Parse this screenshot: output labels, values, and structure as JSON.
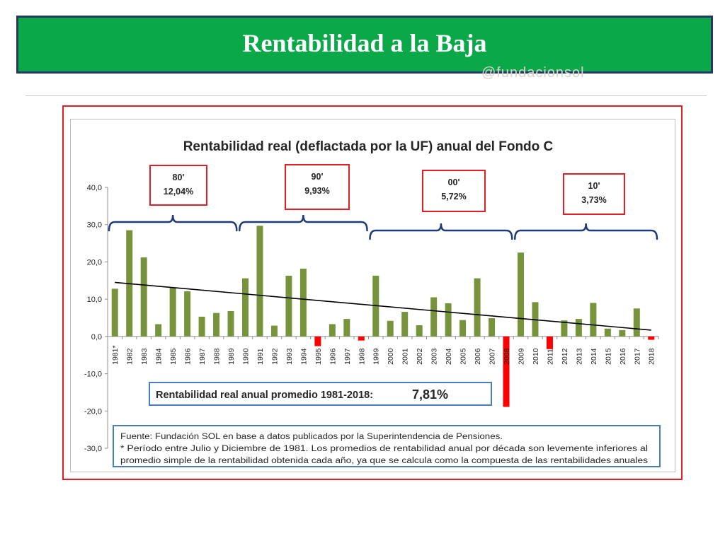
{
  "slide": {
    "title": "Rentabilidad a la Baja",
    "handle": "@fundacionsol"
  },
  "colors": {
    "header_green": "#0ba84a",
    "header_border": "#243a63",
    "bar_positive": "#77933c",
    "bar_negative": "#ff0000",
    "frame_red": "#e31e24",
    "bracket_navy": "#1f3a7a",
    "box_blue": "#4a7ebb",
    "trend": "#000000"
  },
  "chart_data": {
    "type": "bar",
    "title": "Rentabilidad real (deflactada por la UF) anual del Fondo C",
    "categories": [
      "1981*",
      "1982",
      "1983",
      "1984",
      "1985",
      "1986",
      "1987",
      "1988",
      "1989",
      "1990",
      "1991",
      "1992",
      "1993",
      "1994",
      "1995",
      "1996",
      "1997",
      "1998",
      "1999",
      "2000",
      "2001",
      "2002",
      "2003",
      "2004",
      "2005",
      "2006",
      "2007",
      "2008",
      "2009",
      "2010",
      "2011",
      "2012",
      "2013",
      "2014",
      "2015",
      "2016",
      "2017",
      "2018"
    ],
    "values": [
      12.8,
      28.5,
      21.2,
      3.3,
      13.1,
      12.1,
      5.3,
      6.3,
      6.8,
      15.6,
      29.7,
      2.9,
      16.3,
      18.2,
      -2.6,
      3.3,
      4.7,
      -1.1,
      16.3,
      4.2,
      6.6,
      3.0,
      10.5,
      8.9,
      4.4,
      15.6,
      4.9,
      -18.9,
      22.5,
      9.2,
      -3.4,
      4.3,
      4.7,
      9.0,
      2.1,
      1.7,
      7.5,
      -0.9
    ],
    "ylim": [
      -30,
      40
    ],
    "yticks": [
      "40,0",
      "30,0",
      "20,0",
      "10,0",
      "0,0",
      "-10,0",
      "-20,0",
      "-30,0"
    ],
    "ytick_values": [
      40,
      30,
      20,
      10,
      0,
      -10,
      -20,
      -30
    ],
    "trendline": {
      "start": 14.5,
      "end": 1.7
    },
    "decades": [
      {
        "label": "80'",
        "value": "12,04%",
        "first_year": "1981*",
        "last_year": "1989"
      },
      {
        "label": "90'",
        "value": "9,93%",
        "first_year": "1990",
        "last_year": "1998"
      },
      {
        "label": "00'",
        "value": "5,72%",
        "first_year": "1999",
        "last_year": "2008"
      },
      {
        "label": "10'",
        "value": "3,73%",
        "first_year": "2009",
        "last_year": "2018"
      }
    ],
    "average_label": "Rentabilidad real anual promedio 1981-2018:",
    "average_value": "7,81%",
    "source_lines": [
      "Fuente: Fundación SOL en base a datos publicados por la Superintendencia de Pensiones.",
      "* Período entre Julio y Diciembre de 1981. Los promedios de rentabilidad anual por década son levemente inferiores al",
      "promedio simple de la rentabilidad obtenida cada año, ya que se calcula como la compuesta de las rentabilidades anuales"
    ],
    "grid": false,
    "legend": "none"
  }
}
